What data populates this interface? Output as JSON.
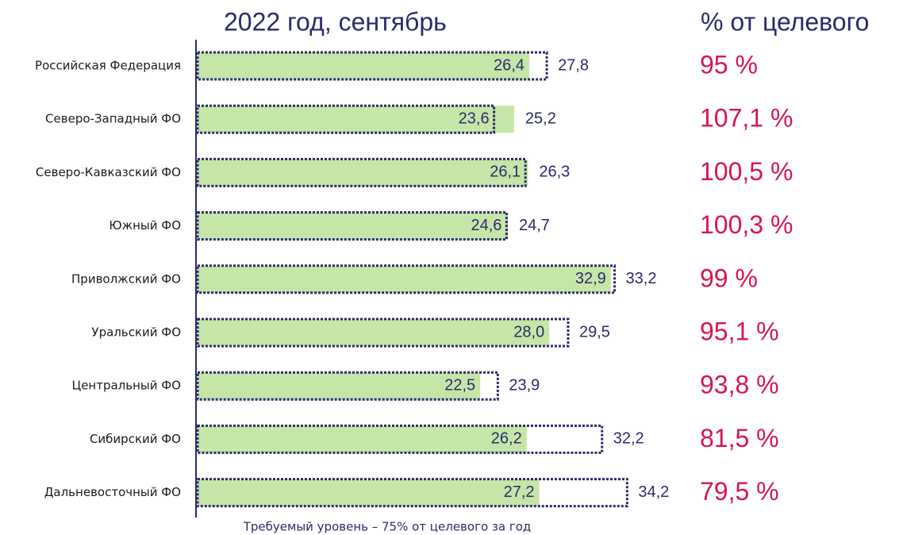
{
  "chart_data": {
    "type": "bar",
    "title": "2022 год, сентябрь",
    "categories": [
      "Российская Федерация",
      "Северо-Западный ФО",
      "Северо-Кавказский ФО",
      "Южный ФО",
      "Приволжский ФО",
      "Уральский ФО",
      "Центральный ФО",
      "Сибирский ФО",
      "Дальневосточный ФО"
    ],
    "series": [
      {
        "color": "#c6e6a8",
        "values": [
          26.4,
          25.2,
          26.3,
          24.7,
          32.9,
          28.0,
          22.5,
          26.2,
          27.2
        ],
        "value_labels": [
          "26,4",
          "25,2",
          "26,3",
          "24,7",
          "32,9",
          "28,0",
          "22,5",
          "26,2",
          "27,2"
        ]
      },
      {
        "color": "#2b2a6b",
        "values": [
          27.8,
          23.6,
          26.1,
          24.6,
          33.2,
          29.5,
          23.9,
          32.2,
          34.2
        ],
        "value_labels": [
          "27,8",
          "23,6",
          "26,1",
          "24,6",
          "33,2",
          "29,5",
          "23,9",
          "32,2",
          "34,2"
        ]
      }
    ],
    "percent_title": "% от целевого",
    "percent_values": [
      95,
      107.1,
      100.5,
      100.3,
      99,
      95.1,
      93.8,
      81.5,
      79.5
    ],
    "percent_labels": [
      "95 %",
      "107,1 %",
      "100,5 %",
      "100,3 %",
      "99 %",
      "95,1 %",
      "93,8 %",
      "81,5 %",
      "79,5 %"
    ],
    "footnote": "Требуемый уровень – 75% от целевого за год"
  }
}
